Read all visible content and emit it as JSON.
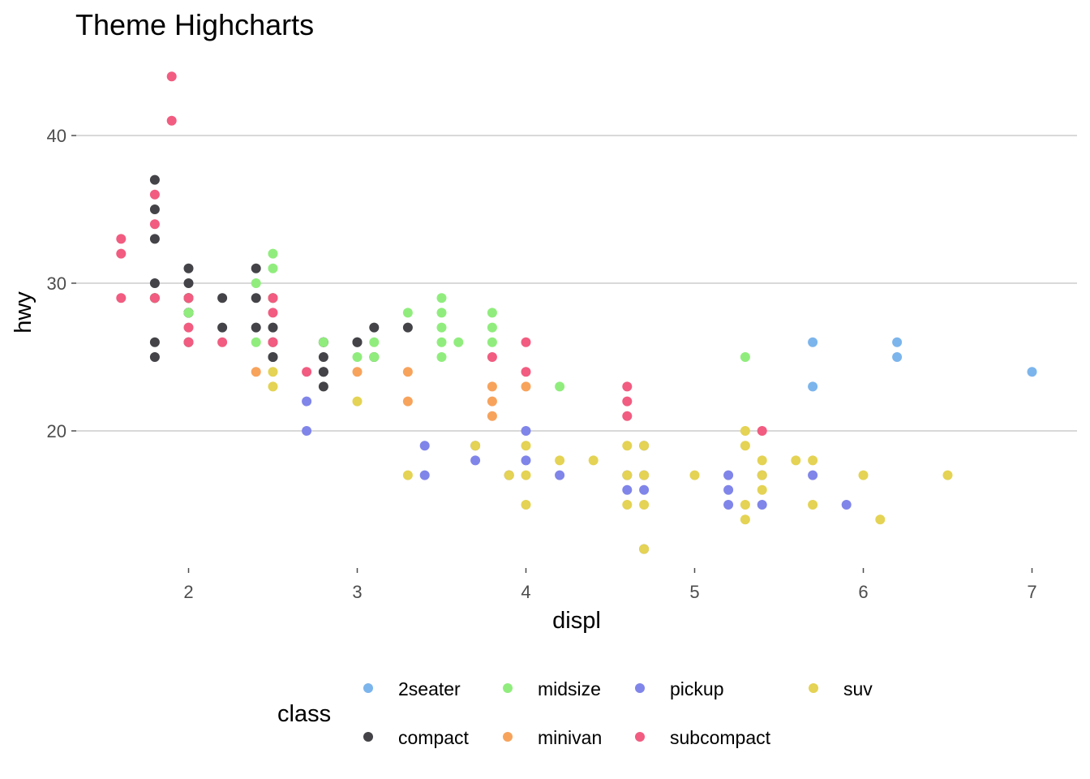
{
  "chart_data": {
    "type": "scatter",
    "title": "Theme Highcharts",
    "xlabel": "displ",
    "ylabel": "hwy",
    "xlim": [
      1.6,
      7.0
    ],
    "ylim": [
      12,
      44
    ],
    "x_ticks": [
      2,
      3,
      4,
      5,
      6,
      7
    ],
    "y_ticks": [
      20,
      30,
      40
    ],
    "grid": "horizontal major lines",
    "legend": {
      "title": "class",
      "position": "bottom",
      "entries": [
        {
          "name": "2seater",
          "color": "#7cb5ec"
        },
        {
          "name": "compact",
          "color": "#434348"
        },
        {
          "name": "midsize",
          "color": "#90ed7d"
        },
        {
          "name": "minivan",
          "color": "#f7a35c"
        },
        {
          "name": "pickup",
          "color": "#8085e9"
        },
        {
          "name": "subcompact",
          "color": "#f15c80"
        },
        {
          "name": "suv",
          "color": "#e4d354"
        }
      ]
    },
    "series": [
      {
        "name": "2seater",
        "color": "#7cb5ec",
        "points": [
          [
            5.7,
            26
          ],
          [
            5.7,
            23
          ],
          [
            6.2,
            26
          ],
          [
            6.2,
            25
          ],
          [
            7.0,
            24
          ]
        ]
      },
      {
        "name": "compact",
        "color": "#434348",
        "points": [
          [
            1.8,
            29
          ],
          [
            1.8,
            29
          ],
          [
            2.0,
            31
          ],
          [
            2.0,
            30
          ],
          [
            2.8,
            26
          ],
          [
            2.8,
            25
          ],
          [
            3.1,
            27
          ],
          [
            1.8,
            26
          ],
          [
            1.8,
            25
          ],
          [
            2.0,
            28
          ],
          [
            2.0,
            29
          ],
          [
            2.8,
            26
          ],
          [
            2.8,
            24
          ],
          [
            3.1,
            25
          ],
          [
            1.8,
            33
          ],
          [
            1.8,
            35
          ],
          [
            1.8,
            37
          ],
          [
            2.0,
            28
          ],
          [
            2.0,
            29
          ],
          [
            2.2,
            27
          ],
          [
            2.2,
            29
          ],
          [
            2.4,
            31
          ],
          [
            2.4,
            27
          ],
          [
            2.5,
            26
          ],
          [
            2.5,
            29
          ],
          [
            2.5,
            25
          ],
          [
            2.5,
            27
          ],
          [
            3.0,
            26
          ],
          [
            3.0,
            26
          ],
          [
            3.3,
            27
          ],
          [
            2.4,
            29
          ],
          [
            2.0,
            28
          ],
          [
            2.0,
            29
          ],
          [
            2.8,
            23
          ],
          [
            2.8,
            24
          ],
          [
            1.8,
            30
          ],
          [
            2.0,
            26
          ],
          [
            2.5,
            25
          ]
        ]
      },
      {
        "name": "midsize",
        "color": "#90ed7d",
        "points": [
          [
            1.8,
            29
          ],
          [
            2.0,
            29
          ],
          [
            2.0,
            28
          ],
          [
            2.4,
            30
          ],
          [
            2.4,
            26
          ],
          [
            2.5,
            32
          ],
          [
            2.5,
            31
          ],
          [
            2.5,
            29
          ],
          [
            2.8,
            26
          ],
          [
            3.0,
            25
          ],
          [
            3.1,
            26
          ],
          [
            3.1,
            25
          ],
          [
            3.3,
            28
          ],
          [
            3.5,
            29
          ],
          [
            3.5,
            28
          ],
          [
            3.5,
            27
          ],
          [
            3.5,
            26
          ],
          [
            3.5,
            25
          ],
          [
            3.6,
            26
          ],
          [
            3.8,
            28
          ],
          [
            3.8,
            27
          ],
          [
            3.8,
            26
          ],
          [
            4.2,
            23
          ],
          [
            5.3,
            25
          ]
        ]
      },
      {
        "name": "minivan",
        "color": "#f7a35c",
        "points": [
          [
            2.4,
            24
          ],
          [
            3.0,
            24
          ],
          [
            3.3,
            24
          ],
          [
            3.3,
            22
          ],
          [
            3.8,
            23
          ],
          [
            3.8,
            22
          ],
          [
            3.8,
            21
          ],
          [
            4.0,
            23
          ],
          [
            3.9,
            17
          ]
        ]
      },
      {
        "name": "pickup",
        "color": "#8085e9",
        "points": [
          [
            2.7,
            22
          ],
          [
            2.7,
            20
          ],
          [
            3.4,
            19
          ],
          [
            3.4,
            17
          ],
          [
            3.7,
            19
          ],
          [
            3.7,
            18
          ],
          [
            3.9,
            17
          ],
          [
            4.0,
            20
          ],
          [
            4.0,
            18
          ],
          [
            4.2,
            17
          ],
          [
            4.6,
            17
          ],
          [
            4.6,
            16
          ],
          [
            4.7,
            19
          ],
          [
            4.7,
            17
          ],
          [
            4.7,
            16
          ],
          [
            4.7,
            12
          ],
          [
            5.2,
            17
          ],
          [
            5.2,
            16
          ],
          [
            5.2,
            15
          ],
          [
            5.4,
            17
          ],
          [
            5.4,
            15
          ],
          [
            5.7,
            17
          ],
          [
            5.9,
            15
          ]
        ]
      },
      {
        "name": "subcompact",
        "color": "#f15c80",
        "points": [
          [
            1.6,
            33
          ],
          [
            1.6,
            32
          ],
          [
            1.6,
            29
          ],
          [
            1.8,
            36
          ],
          [
            1.8,
            34
          ],
          [
            1.9,
            44
          ],
          [
            1.9,
            41
          ],
          [
            2.0,
            27
          ],
          [
            2.0,
            26
          ],
          [
            2.2,
            26
          ],
          [
            2.5,
            29
          ],
          [
            2.5,
            28
          ],
          [
            2.5,
            26
          ],
          [
            2.7,
            24
          ],
          [
            3.8,
            25
          ],
          [
            4.0,
            26
          ],
          [
            4.0,
            24
          ],
          [
            4.6,
            23
          ],
          [
            4.6,
            22
          ],
          [
            4.6,
            21
          ],
          [
            5.4,
            20
          ],
          [
            1.8,
            29
          ],
          [
            2.0,
            29
          ]
        ]
      },
      {
        "name": "suv",
        "color": "#e4d354",
        "points": [
          [
            2.5,
            24
          ],
          [
            2.5,
            23
          ],
          [
            3.0,
            22
          ],
          [
            3.3,
            17
          ],
          [
            3.7,
            19
          ],
          [
            3.9,
            17
          ],
          [
            4.0,
            19
          ],
          [
            4.0,
            17
          ],
          [
            4.0,
            15
          ],
          [
            4.2,
            18
          ],
          [
            4.4,
            18
          ],
          [
            4.6,
            19
          ],
          [
            4.6,
            17
          ],
          [
            4.6,
            15
          ],
          [
            4.7,
            19
          ],
          [
            4.7,
            17
          ],
          [
            4.7,
            15
          ],
          [
            4.7,
            12
          ],
          [
            5.0,
            17
          ],
          [
            5.3,
            20
          ],
          [
            5.3,
            19
          ],
          [
            5.3,
            15
          ],
          [
            5.3,
            14
          ],
          [
            5.4,
            18
          ],
          [
            5.4,
            17
          ],
          [
            5.4,
            16
          ],
          [
            5.6,
            18
          ],
          [
            5.7,
            18
          ],
          [
            5.7,
            15
          ],
          [
            6.0,
            17
          ],
          [
            6.1,
            14
          ],
          [
            6.5,
            17
          ]
        ]
      }
    ]
  }
}
